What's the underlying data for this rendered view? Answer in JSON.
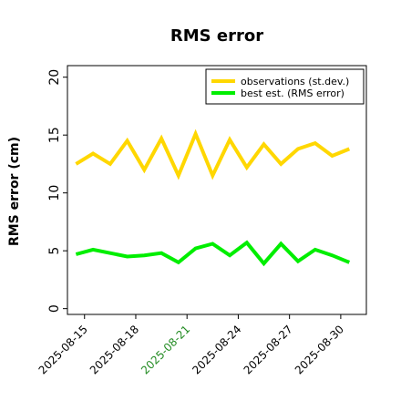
{
  "chart_data": {
    "type": "line",
    "title": "RMS error",
    "ylabel": "RMS error (cm)",
    "xlabel": "",
    "ylim": [
      -0.5,
      21
    ],
    "y_ticks": [
      0,
      5,
      10,
      15,
      20
    ],
    "x_tick_labels": [
      "2025-08-15",
      "2025-08-18",
      "2025-08-21",
      "2025-08-24",
      "2025-08-27",
      "2025-08-30"
    ],
    "x_tick_colors": [
      "#000000",
      "#000000",
      "#228B22",
      "#000000",
      "#000000",
      "#000000"
    ],
    "xlim": [
      "2025-08-14 00:00",
      "2025-08-31 12:00"
    ],
    "grid": false,
    "legend_position": "top-right",
    "x": [
      "2025-08-14 12:00",
      "2025-08-15 12:00",
      "2025-08-16 12:00",
      "2025-08-17 12:00",
      "2025-08-18 12:00",
      "2025-08-19 12:00",
      "2025-08-20 12:00",
      "2025-08-21 12:00",
      "2025-08-22 12:00",
      "2025-08-23 12:00",
      "2025-08-24 12:00",
      "2025-08-25 12:00",
      "2025-08-26 12:00",
      "2025-08-27 12:00",
      "2025-08-28 12:00",
      "2025-08-29 12:00",
      "2025-08-30 12:00"
    ],
    "series": [
      {
        "name": "observations (st.dev.)",
        "color": "#FFD700",
        "values": [
          12.5,
          13.4,
          12.5,
          14.5,
          12.0,
          14.7,
          11.5,
          15.1,
          11.5,
          14.6,
          12.2,
          14.2,
          12.5,
          13.8,
          14.3,
          13.2,
          13.8
        ]
      },
      {
        "name": "best est. (RMS error)",
        "color": "#00EE00",
        "values": [
          4.7,
          5.1,
          4.8,
          4.5,
          4.6,
          4.8,
          4.0,
          5.2,
          5.6,
          4.6,
          5.7,
          3.9,
          5.6,
          4.1,
          5.1,
          4.6,
          4.0
        ]
      }
    ]
  }
}
